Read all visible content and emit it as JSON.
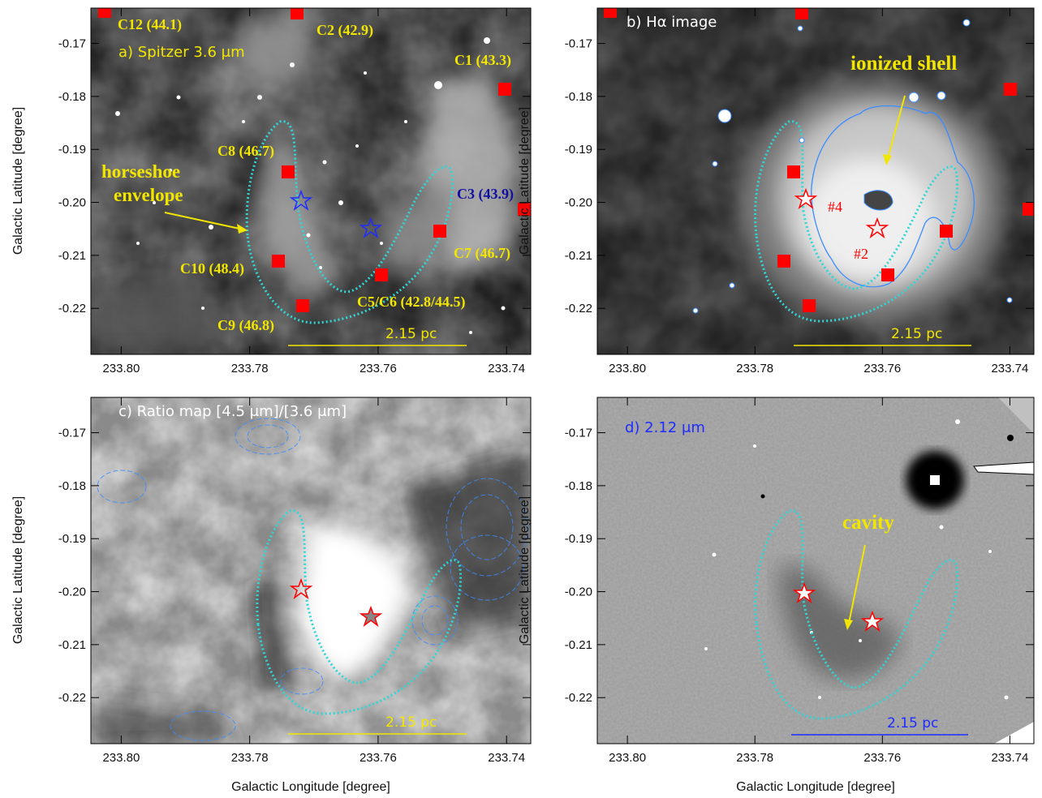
{
  "panels": [
    {
      "key": "a",
      "title": "a) Spitzer 3.6 μm",
      "scalebar": "2.15 pc"
    },
    {
      "key": "b",
      "title": "b) Hα image",
      "scalebar": "2.15 pc"
    },
    {
      "key": "c",
      "title": "c) Ratio map [4.5 μm]/[3.6 μm]",
      "scalebar": "2.15 pc"
    },
    {
      "key": "d",
      "title": "d) 2.12 μm",
      "scalebar": "2.15 pc"
    }
  ],
  "axes": {
    "xlabel": "Galactic Longitude [degree]",
    "ylabel": "Galactic Latitude [degree]",
    "xticks": [
      "233.80",
      "233.78",
      "233.76",
      "233.74"
    ],
    "yticks": [
      "-0.17",
      "-0.18",
      "-0.19",
      "-0.20",
      "-0.21",
      "-0.22"
    ]
  },
  "clumps": [
    {
      "name": "C12 (44.1)"
    },
    {
      "name": "C2 (42.9)"
    },
    {
      "name": "C1 (43.3)"
    },
    {
      "name": "C8 (46.7)"
    },
    {
      "name": "C3 (43.9)"
    },
    {
      "name": "C7 (46.7)"
    },
    {
      "name": "C10 (48.4)"
    },
    {
      "name": "C5/C6 (42.8/44.5)"
    },
    {
      "name": "C9 (46.8)"
    }
  ],
  "annotations": {
    "horseshoe": "horseshoe envelope",
    "ionized": "ionized shell",
    "cavity": "cavity",
    "source4": "#4",
    "source2": "#2"
  },
  "colors": {
    "clump_marker": "#ff0000",
    "contour_cyan": "#2fd6d6",
    "label_yellow": "#f2e600",
    "label_blue": "#1010a0",
    "halpha_contour": "#3a8cff"
  }
}
